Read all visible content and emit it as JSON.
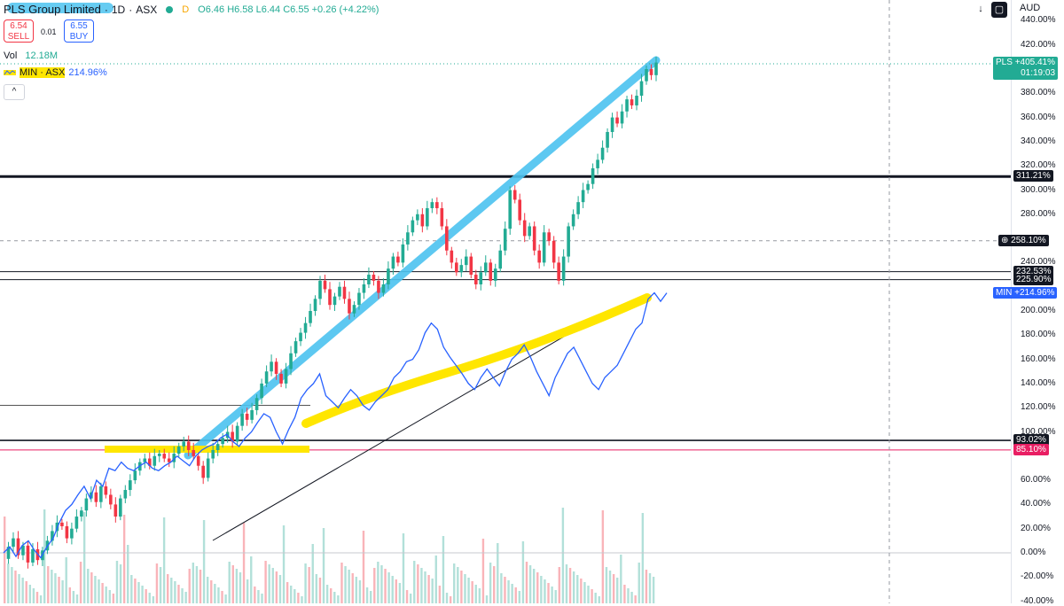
{
  "header": {
    "title": "PLS Group Limited",
    "interval": "1D",
    "exchange": "ASX",
    "d_badge": "D",
    "open": "O6.46",
    "high": "H6.58",
    "low": "L6.44",
    "close": "C6.55",
    "change": "+0.26 (+4.22%)"
  },
  "trade": {
    "sell_price": "6.54",
    "sell_label": "SELL",
    "spread": "0.01",
    "buy_price": "6.55",
    "buy_label": "BUY"
  },
  "volume": {
    "label": "Vol",
    "value": "12.18M"
  },
  "compare": {
    "label": "MIN · ASX",
    "value": "214.96%"
  },
  "currency": "AUD",
  "colors": {
    "up": "#22ab94",
    "down": "#f23645",
    "compare_line": "#2962ff",
    "cyan_highlight": "#4cc3f0",
    "yellow_highlight": "#ffe600",
    "pink_line": "#e91e63"
  },
  "chart_data": {
    "type": "line",
    "y_axis_unit": "%",
    "y_range": [
      -40,
      440
    ],
    "y_ticks": [
      "440.00%",
      "420.00%",
      "380.00%",
      "360.00%",
      "340.00%",
      "320.00%",
      "300.00%",
      "280.00%",
      "240.00%",
      "200.00%",
      "180.00%",
      "160.00%",
      "140.00%",
      "120.00%",
      "100.00%",
      "60.00%",
      "40.00%",
      "20.00%",
      "0.00%",
      "-20.00%",
      "-40.00%"
    ],
    "tick_values": [
      440,
      420,
      380,
      360,
      340,
      320,
      300,
      280,
      240,
      200,
      180,
      160,
      140,
      120,
      100,
      60,
      40,
      20,
      0,
      -20,
      -40
    ],
    "horizontal_levels": [
      {
        "value": 311.21,
        "label": "311.21%",
        "style": "thick"
      },
      {
        "value": 258.1,
        "label": "258.10%",
        "style": "dashed"
      },
      {
        "value": 232.53,
        "label": "232.53%",
        "style": "thin"
      },
      {
        "value": 225.9,
        "label": "225.90%",
        "style": "thin"
      },
      {
        "value": 93.02,
        "label": "93.02%",
        "style": "medium"
      },
      {
        "value": 85.1,
        "label": "85.10%",
        "style": "pink"
      },
      {
        "value": 122,
        "label": "",
        "style": "short"
      },
      {
        "value": 0,
        "label": "",
        "style": "zero"
      }
    ],
    "series": [
      {
        "name": "PLS",
        "last_label": "+405.41%",
        "countdown": "01:19:03",
        "values": [
          -5,
          5,
          12,
          -2,
          6,
          -8,
          3,
          -6,
          2,
          10,
          18,
          25,
          22,
          12,
          20,
          30,
          35,
          45,
          50,
          42,
          55,
          48,
          40,
          30,
          45,
          52,
          60,
          68,
          75,
          78,
          72,
          80,
          82,
          78,
          75,
          82,
          88,
          92,
          85,
          80,
          72,
          62,
          78,
          85,
          90,
          95,
          100,
          92,
          105,
          115,
          110,
          118,
          128,
          140,
          150,
          158,
          148,
          140,
          152,
          165,
          175,
          182,
          190,
          200,
          210,
          225,
          218,
          205,
          212,
          220,
          210,
          198,
          205,
          215,
          222,
          230,
          225,
          215,
          222,
          235,
          245,
          240,
          255,
          265,
          275,
          280,
          270,
          285,
          290,
          285,
          270,
          250,
          240,
          232,
          238,
          245,
          230,
          222,
          232,
          240,
          225,
          235,
          250,
          268,
          300,
          292,
          275,
          262,
          270,
          250,
          240,
          265,
          258,
          240,
          225,
          245,
          270,
          280,
          290,
          300,
          305,
          318,
          325,
          335,
          348,
          360,
          355,
          365,
          375,
          370,
          378,
          390,
          400,
          395,
          405.41
        ]
      },
      {
        "name": "MIN",
        "last_label": "+214.96%",
        "values": [
          0,
          5,
          -3,
          6,
          10,
          2,
          -4,
          5,
          12,
          25,
          35,
          40,
          48,
          55,
          45,
          60,
          55,
          70,
          68,
          75,
          70,
          68,
          72,
          75,
          70,
          68,
          72,
          75,
          80,
          76,
          72,
          80,
          85,
          88,
          90,
          95,
          98,
          92,
          88,
          95,
          100,
          108,
          115,
          112,
          100,
          90,
          102,
          112,
          128,
          135,
          140,
          148,
          130,
          125,
          120,
          128,
          135,
          130,
          122,
          118,
          125,
          130,
          135,
          145,
          150,
          158,
          160,
          168,
          182,
          190,
          185,
          170,
          162,
          155,
          148,
          140,
          135,
          145,
          152,
          145,
          138,
          150,
          160,
          165,
          172,
          162,
          150,
          140,
          130,
          145,
          155,
          165,
          170,
          160,
          150,
          140,
          135,
          145,
          150,
          155,
          165,
          175,
          185,
          190,
          210,
          215,
          208,
          214.96
        ]
      }
    ]
  }
}
